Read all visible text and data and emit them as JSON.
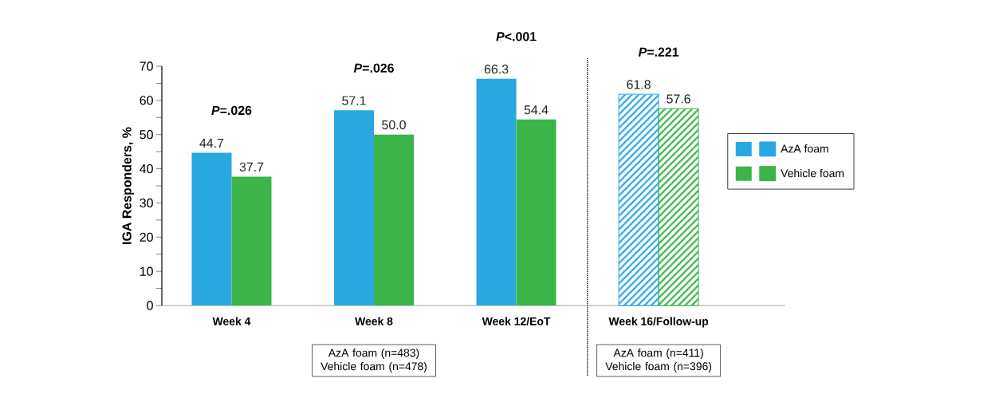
{
  "chart_data": {
    "type": "bar",
    "ylabel": "IGA Responders, %",
    "categories": [
      "Week 4",
      "Week 8",
      "Week 12/EoT",
      "Week 16/Follow-up"
    ],
    "series": [
      {
        "name": "AzA foam",
        "color": "#29a8e0",
        "values": [
          44.7,
          57.1,
          66.3,
          61.8
        ],
        "value_labels": [
          "44.7",
          "57.1",
          "66.3",
          "61.8"
        ]
      },
      {
        "name": "Vehicle foam",
        "color": "#3bb44a",
        "values": [
          37.7,
          50.0,
          54.4,
          57.6
        ],
        "value_labels": [
          "37.7",
          "50.0",
          "54.4",
          "57.6"
        ]
      }
    ],
    "ylim": [
      0,
      70
    ],
    "yticks": [
      0,
      {
        "value": 5,
        "label": null
      },
      10,
      {
        "value": 15,
        "label": null
      },
      20,
      {
        "value": 25,
        "label": null
      },
      30,
      {
        "value": 35,
        "label": null
      },
      40,
      {
        "value": 45,
        "label": null
      },
      50,
      {
        "value": 55,
        "label": null
      },
      60,
      {
        "value": 65,
        "label": null
      },
      70
    ],
    "annotations": [
      "*P*=.026",
      "*P*=.026",
      "*P*<.001",
      "*P*=.221",
      "AzA foam (n=483) Vehicle foam (n=478)",
      "AzA foam (n=411) Vehicle foam (n=396)"
    ],
    "legend": "right"
  }
}
